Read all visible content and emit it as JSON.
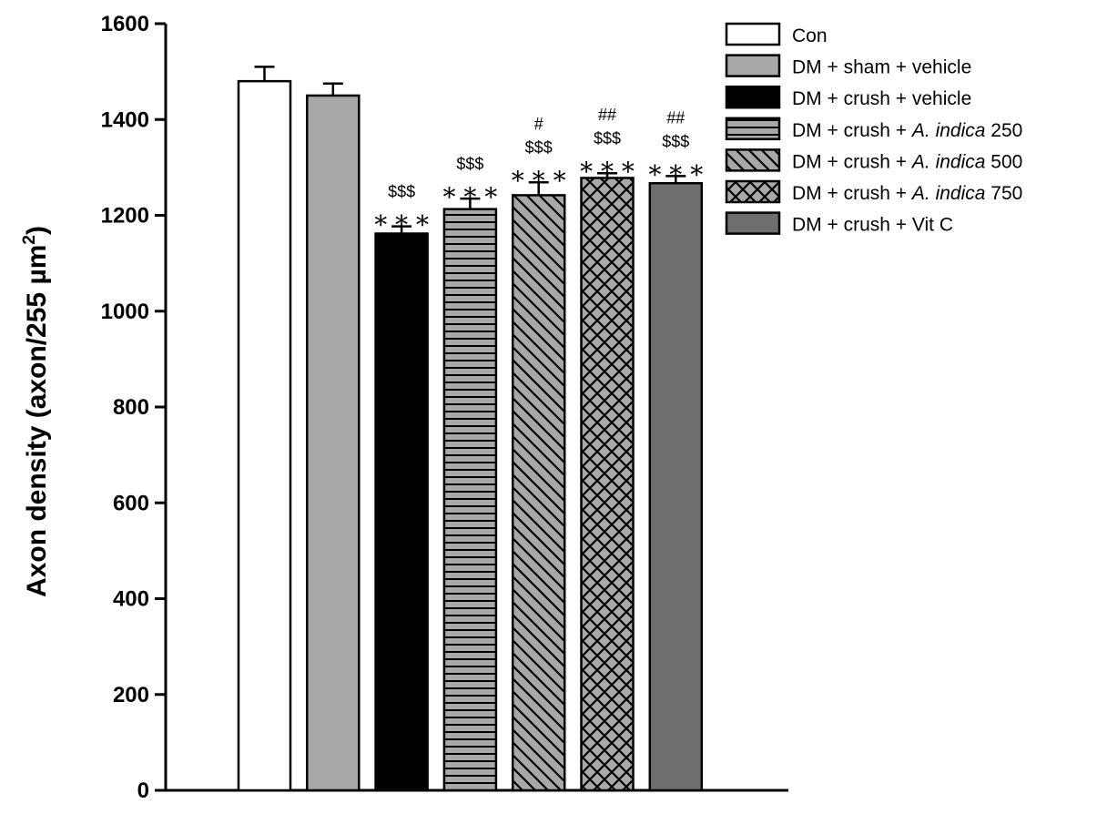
{
  "chart_data": {
    "type": "bar",
    "title": "",
    "xlabel": "",
    "ylabel": "Axon density (axon/255 µm",
    "ylabel_sup": "2",
    "ylabel_close": ")",
    "ylim": [
      0,
      1600
    ],
    "yticks": [
      "0",
      "200",
      "400",
      "600",
      "800",
      "1000",
      "1200",
      "1400",
      "1600"
    ],
    "categories": [
      "Con",
      "DM + sham + vehicle",
      "DM + crush + vehicle",
      "DM + crush + A. indica 250",
      "DM + crush + A. indica 500",
      "DM + crush + A. indica 750",
      "DM + crush + Vit C"
    ],
    "values": [
      1480,
      1450,
      1162,
      1213,
      1242,
      1278,
      1267
    ],
    "errors": [
      30,
      25,
      15,
      22,
      27,
      10,
      15
    ],
    "significance": [
      [],
      [],
      [
        "$$$",
        "***"
      ],
      [
        "$$$",
        "***"
      ],
      [
        "#",
        "$$$",
        "***"
      ],
      [
        "##",
        "$$$",
        "***"
      ],
      [
        "##",
        "$$$",
        "***"
      ]
    ],
    "legend": [
      {
        "pre": "Con",
        "italic": "",
        "post": ""
      },
      {
        "pre": "DM + sham + vehicle",
        "italic": "",
        "post": ""
      },
      {
        "pre": "DM + crush + vehicle",
        "italic": "",
        "post": ""
      },
      {
        "pre": "DM + crush + ",
        "italic": "A. indica",
        "post": " 250"
      },
      {
        "pre": "DM + crush + ",
        "italic": "A. indica",
        "post": " 500"
      },
      {
        "pre": "DM + crush + ",
        "italic": "A. indica",
        "post": " 750"
      },
      {
        "pre": "DM + crush + Vit C",
        "italic": "",
        "post": ""
      }
    ],
    "legend_placement": "top-right",
    "grid": false,
    "fills": [
      "white",
      "light-gray",
      "black",
      "horizontal-lines",
      "diagonal-lines",
      "crosshatch",
      "dark-gray"
    ],
    "colors": {
      "light_gray": "#a8a8a8",
      "dark_gray": "#6e6e6e",
      "black": "#000000",
      "white": "#ffffff"
    }
  }
}
